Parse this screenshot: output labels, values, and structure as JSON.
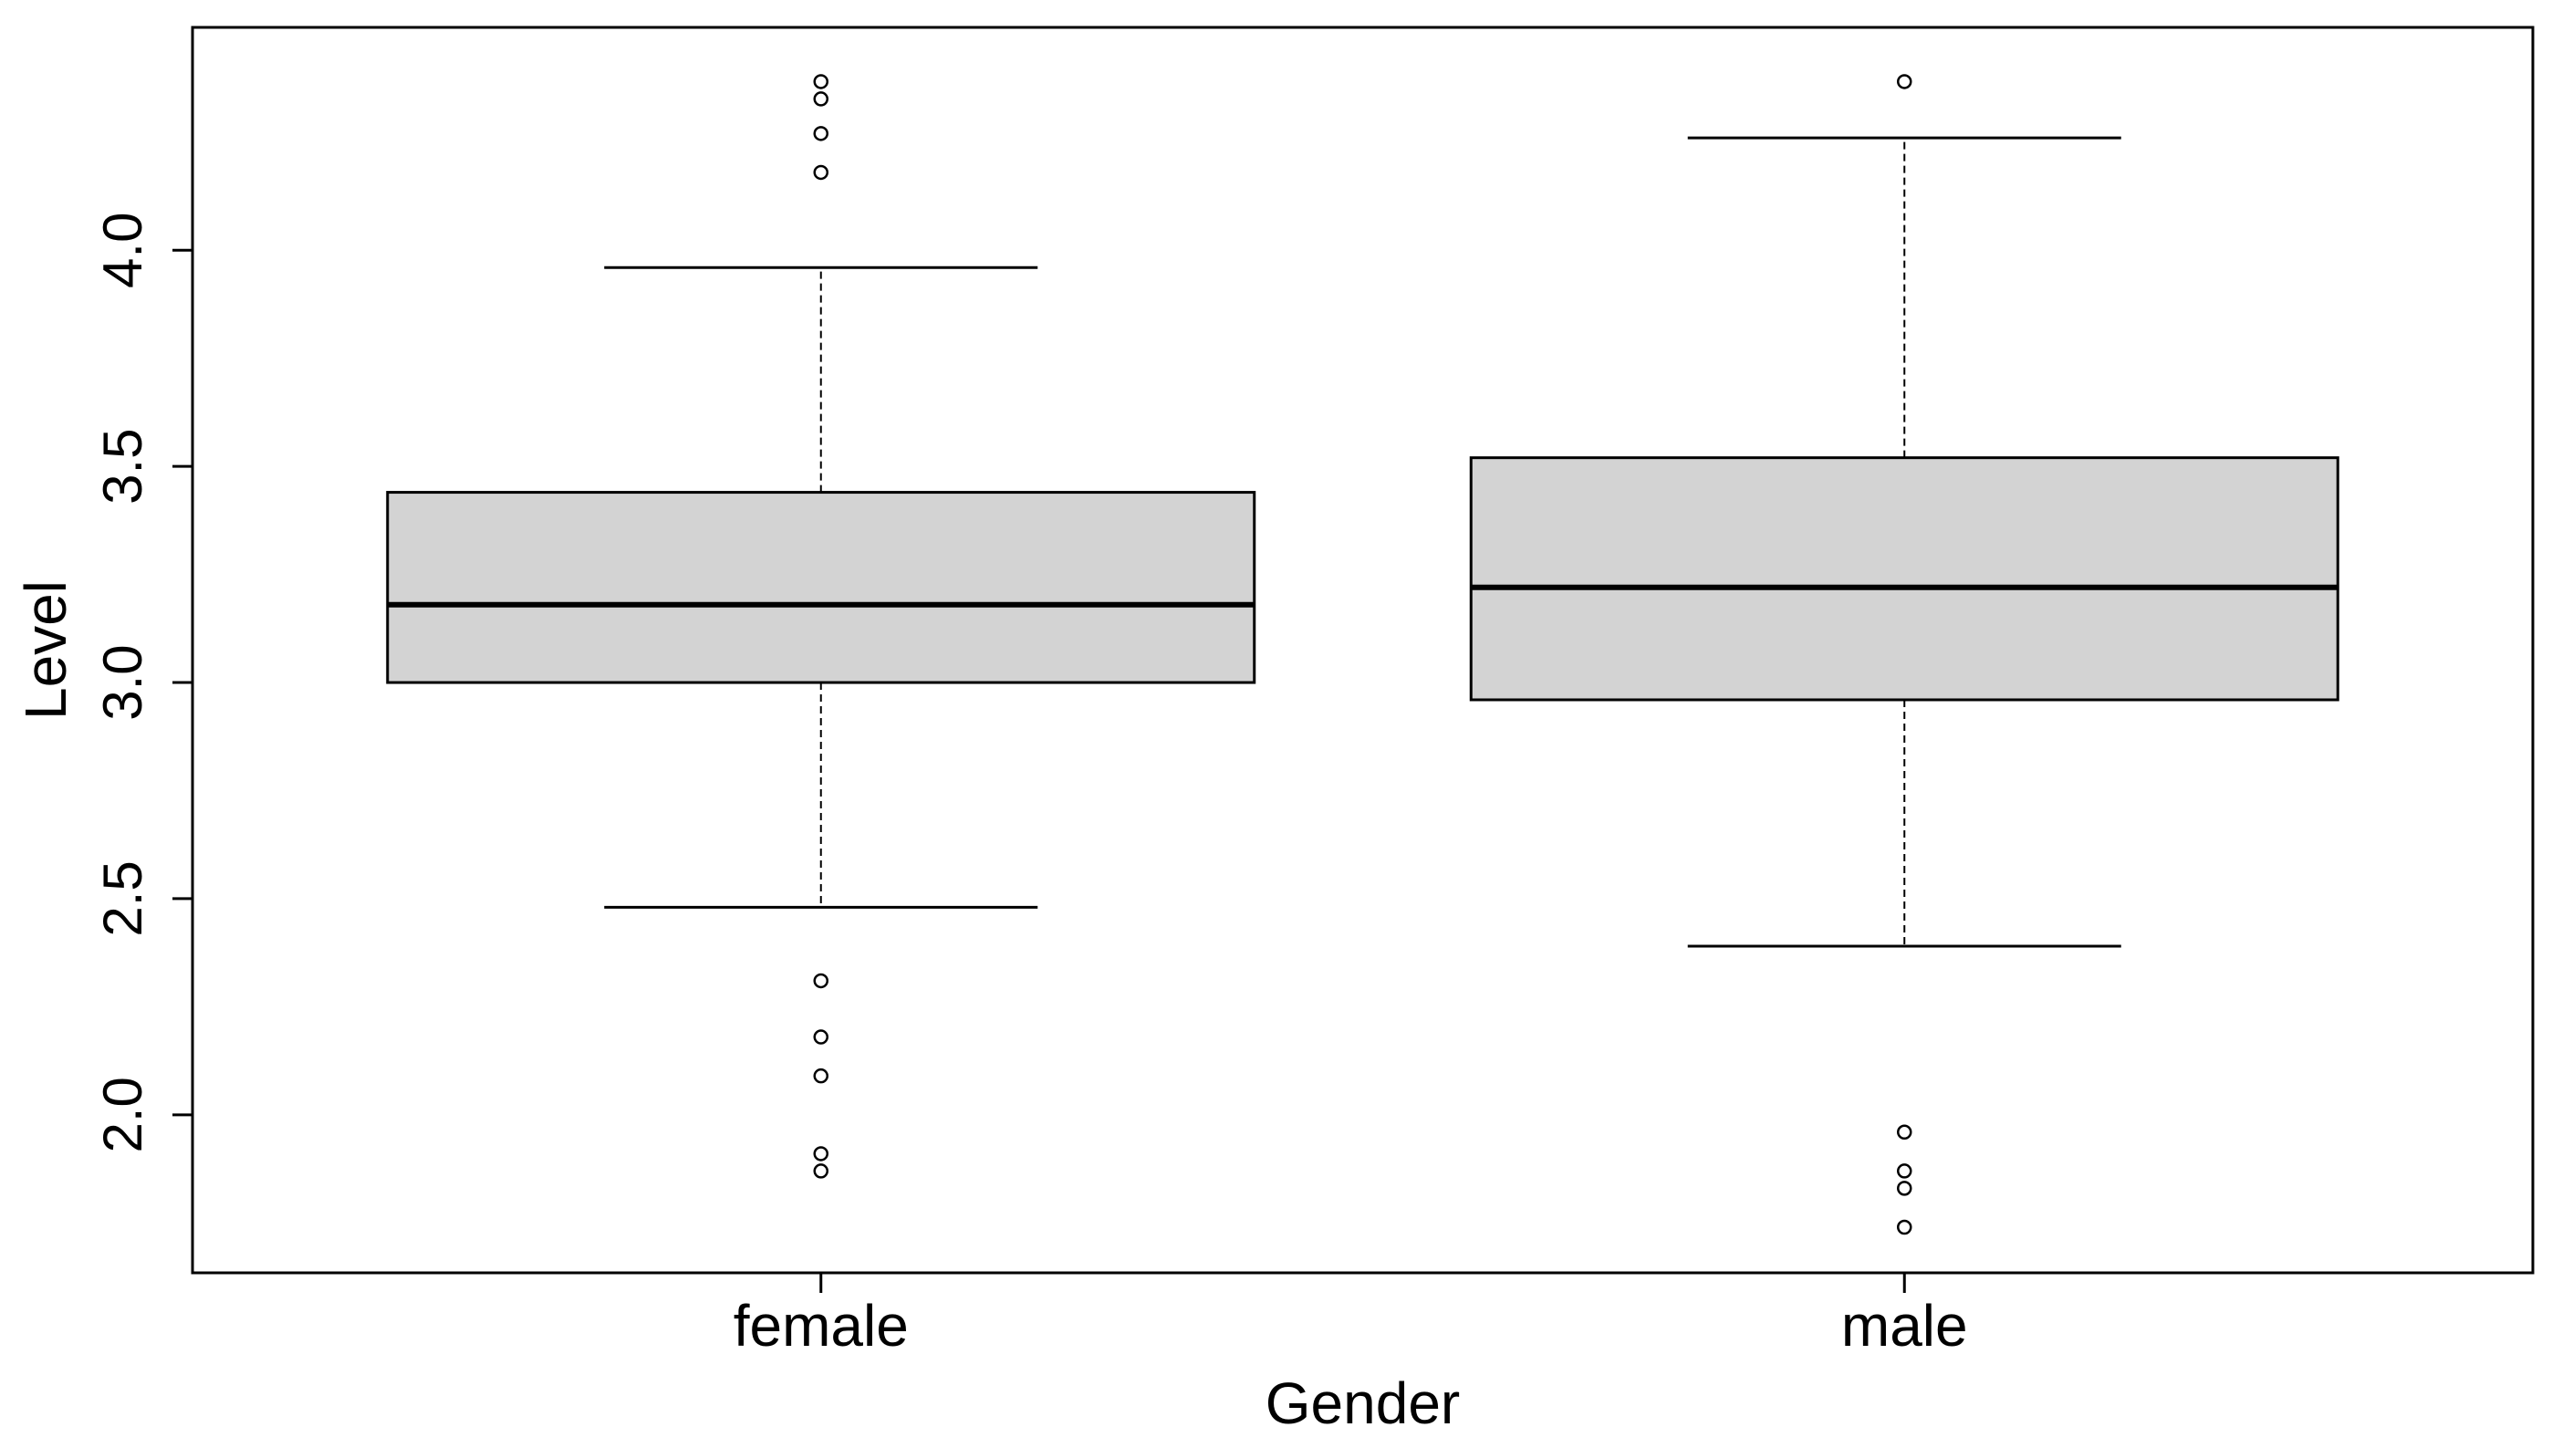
{
  "chart_data": {
    "type": "boxplot",
    "title": "",
    "xlabel": "Gender",
    "ylabel": "Level",
    "ylim": [
      1.74,
      4.41
    ],
    "yticks": [
      2.0,
      2.5,
      3.0,
      3.5,
      4.0
    ],
    "ytick_labels": [
      "2.0",
      "2.5",
      "3.0",
      "3.5",
      "4.0"
    ],
    "categories": [
      "female",
      "male"
    ],
    "boxes": [
      {
        "name": "female",
        "whisker_low": 2.48,
        "q1": 3.0,
        "median": 3.18,
        "q3": 3.44,
        "whisker_high": 3.96,
        "outliers": [
          4.39,
          4.35,
          4.27,
          4.18,
          2.31,
          2.18,
          2.09,
          1.91,
          1.87
        ]
      },
      {
        "name": "male",
        "whisker_low": 2.39,
        "q1": 2.96,
        "median": 3.22,
        "q3": 3.52,
        "whisker_high": 4.26,
        "outliers": [
          4.39,
          1.96,
          1.87,
          1.83,
          1.74
        ]
      }
    ],
    "box_fill": "#d3d3d3",
    "line_color": "#000000",
    "grid": false
  }
}
